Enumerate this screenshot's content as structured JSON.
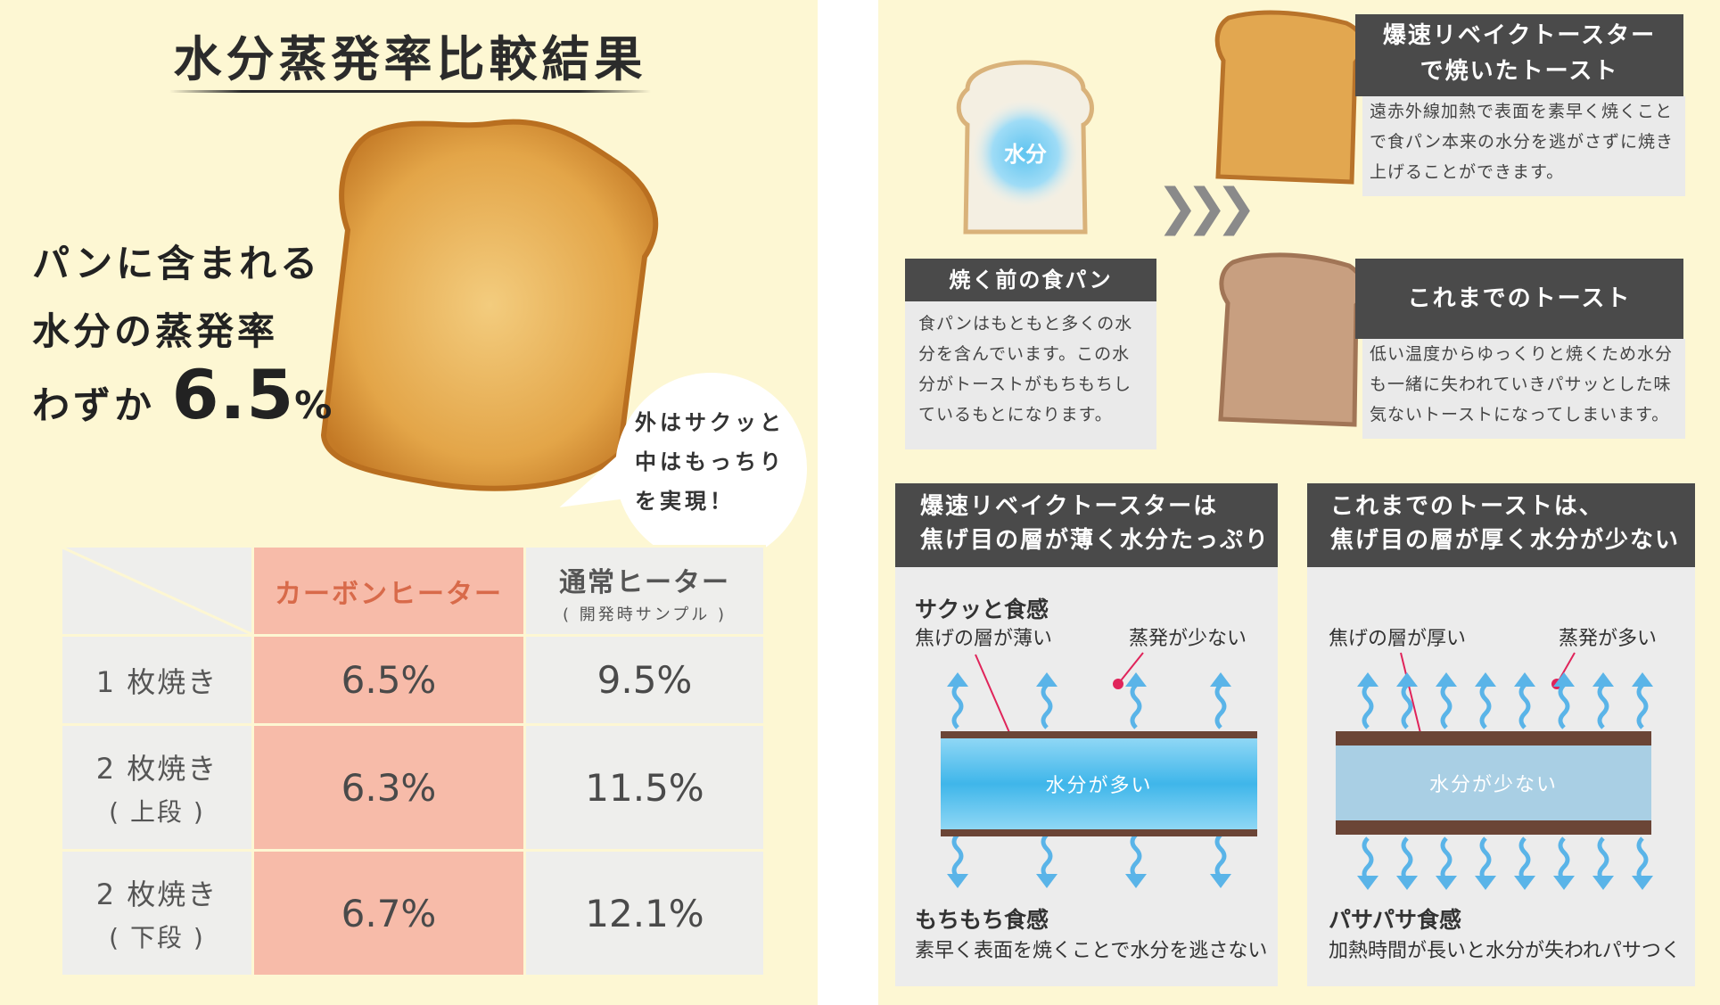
{
  "left": {
    "title": "水分蒸発率比較結果",
    "lead_line1": "パンに含まれる",
    "lead_line2": "水分の蒸発率",
    "lead_line3_prefix": "わずか",
    "lead_value": "6.5",
    "lead_unit": "%",
    "bubble": [
      "外はサクッと",
      "中はもっちり",
      "を実現！"
    ],
    "table": {
      "header_carbon": "カーボンヒーター",
      "header_normal": "通常ヒーター",
      "header_normal_sub": "( 開発時サンプル )",
      "rows": [
        {
          "label": "1 枚焼き",
          "sub": "",
          "carbon": "6.5%",
          "normal": "9.5%"
        },
        {
          "label": "2 枚焼き",
          "sub": "( 上段 )",
          "carbon": "6.3%",
          "normal": "11.5%"
        },
        {
          "label": "2 枚焼き",
          "sub": "( 下段 )",
          "carbon": "6.7%",
          "normal": "12.1%"
        }
      ]
    }
  },
  "right": {
    "moisture_label": "水分",
    "before_title": "焼く前の食パン",
    "before_text": [
      "食パンはもともと多くの水",
      "分を含んでいます。この水",
      "分がトーストがもちもちし",
      "ているもとになります。"
    ],
    "rebake_title": [
      "爆速リベイクトースターで焼いたトースト"
    ],
    "rebake_title_l1": "爆速リベイクトースター",
    "rebake_title_l2": "で焼いたトースト",
    "rebake_text": [
      "遠赤外線加熱で表面を素早く焼くこと",
      "で食パン本来の水分を逃がさずに焼き",
      "上げることができます。"
    ],
    "old_title": "これまでのトースト",
    "old_text": [
      "低い温度からゆっくりと焼くため水分",
      "も一緒に失われていきパサッとした味",
      "気ないトーストになってしまいます。"
    ],
    "diag_left": {
      "head1": "爆速リベイクトースターは",
      "head2": "焦げ目の層が薄く水分たっぷり",
      "feel_top": "サクッと食感",
      "crust": "焦げの層が薄い",
      "evap": "蒸発が少ない",
      "water": "水分が多い",
      "feel_bottom": "もちもち食感",
      "note": "素早く表面を焼くことで水分を逃さない"
    },
    "diag_right": {
      "head1": "これまでのトーストは、",
      "head2": "焦げ目の層が厚く水分が少ない",
      "crust": "焦げの層が厚い",
      "evap": "蒸発が多い",
      "water": "水分が少ない",
      "feel_bottom": "パサパサ食感",
      "note": "加熱時間が長いと水分が失われパサつく"
    },
    "colors": {
      "dark_header": "#4a4a4a",
      "water_blue": "#4fc3ea",
      "water_pale": "#a9cfe4",
      "crust": "#6b4536",
      "arrow": "#5ab4e8"
    }
  }
}
